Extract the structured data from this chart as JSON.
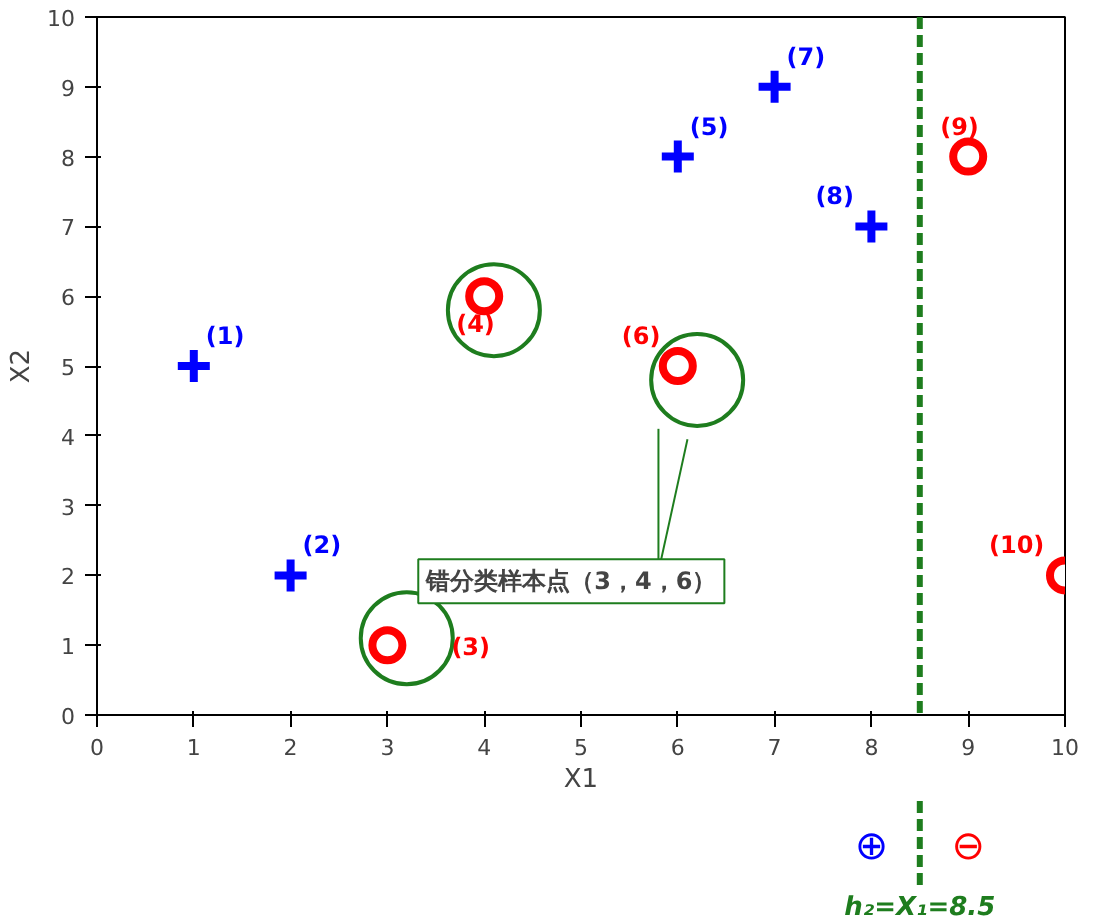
{
  "chart_data": {
    "type": "scatter",
    "xlabel": "X1",
    "ylabel": "X2",
    "xlim": [
      0,
      10
    ],
    "ylim": [
      0,
      10
    ],
    "xticks": [
      0,
      1,
      2,
      3,
      4,
      5,
      6,
      7,
      8,
      9,
      10
    ],
    "yticks": [
      0,
      1,
      2,
      3,
      4,
      5,
      6,
      7,
      8,
      9,
      10
    ],
    "grid": false,
    "series": [
      {
        "color": "#0000ff",
        "marker": "cross",
        "x": [
          1,
          2,
          6,
          7,
          8
        ],
        "values": [
          5,
          2,
          8,
          9,
          7
        ]
      },
      {
        "color": "#ff0000",
        "marker": "circle",
        "x": [
          3,
          4,
          6,
          9,
          10
        ],
        "values": [
          1,
          6,
          5,
          8,
          2
        ]
      },
      {
        "color": "#1e7d1e",
        "marker": "circle",
        "x": [
          3.2,
          4.1,
          6.2
        ],
        "values": [
          1.1,
          5.8,
          4.8
        ]
      }
    ],
    "ref_lines": [
      {
        "axis": "x",
        "value": 8.5,
        "label": "h₂=X₁=8.5",
        "color": "#1e7d1e",
        "line_style": "dashed"
      }
    ],
    "annotations": [
      "错分类样本点（3，4，6）",
      {
        "text": "(1)",
        "x": 1,
        "y": 5
      },
      {
        "text": "(2)",
        "x": 2,
        "y": 2
      },
      {
        "text": "(3)",
        "x": 3,
        "y": 1
      },
      {
        "text": "(4)",
        "x": 4,
        "y": 6
      },
      {
        "text": "(5)",
        "x": 6,
        "y": 8
      },
      {
        "text": "(6)",
        "x": 6,
        "y": 5
      },
      {
        "text": "(7)",
        "x": 7,
        "y": 9
      },
      {
        "text": "(8)",
        "x": 8,
        "y": 7
      },
      {
        "text": "(9)",
        "x": 9,
        "y": 8
      },
      {
        "text": "(10)",
        "x": 10,
        "y": 2
      },
      "⊕",
      "⊖"
    ]
  }
}
